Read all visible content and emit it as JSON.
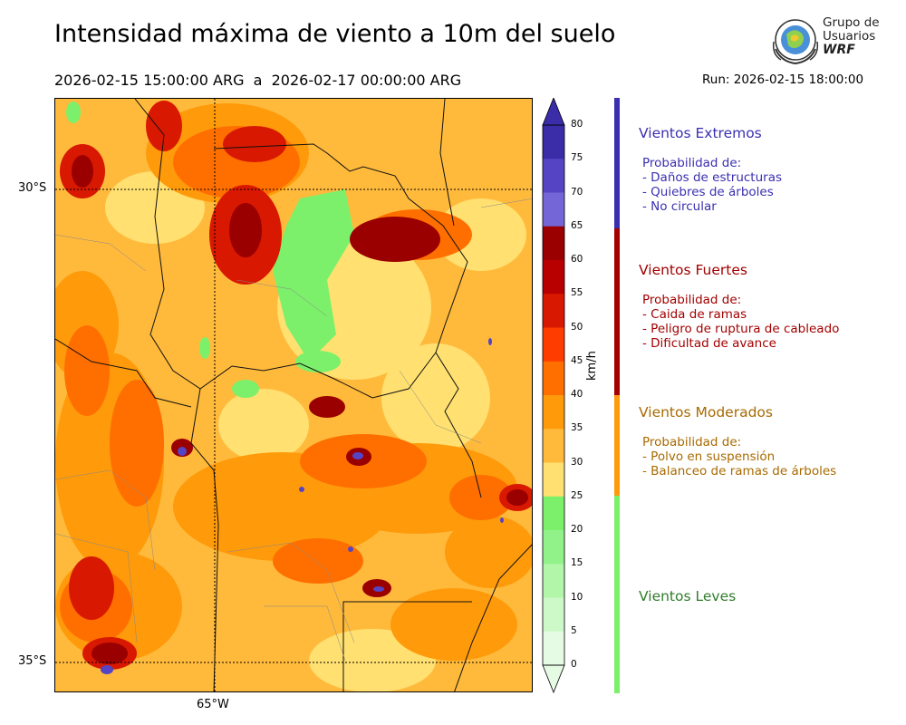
{
  "title": "Intensidad máxima de viento a 10m del suelo",
  "period": "2026-02-15 15:00:00 ARG  a  2026-02-17 00:00:00 ARG",
  "run": "Run: 2026-02-15 18:00:00",
  "logo": {
    "line1": "Grupo de",
    "line2": "Usuarios",
    "line3": "WRF"
  },
  "map": {
    "lat_labels": [
      "30°S",
      "35°S"
    ],
    "lon_labels": [
      "65°W"
    ]
  },
  "colorbar": {
    "unit": "km/h",
    "ticks": [
      "80",
      "75",
      "70",
      "65",
      "60",
      "55",
      "50",
      "45",
      "40",
      "35",
      "30",
      "25",
      "20",
      "15",
      "10",
      "5",
      "0"
    ],
    "colors": {
      "75": "#3b2ca8",
      "70": "#5545c4",
      "65": "#7566d8",
      "60": "#9a0000",
      "55": "#b90000",
      "50": "#d81800",
      "45": "#ff3c00",
      "40": "#ff6f00",
      "35": "#ff9a0a",
      "30": "#ffba3c",
      "25": "#ffe070",
      "20": "#7cf06a",
      "15": "#92f28a",
      "10": "#b2f6aa",
      "5": "#cdf8c8",
      "0": "#e6fbe3"
    }
  },
  "categories": [
    {
      "title": "Vientos Extremos",
      "color": "#3a2fb0",
      "bar_color": "#3a2fb0",
      "lines": [
        "Probabilidad de:",
        "- Daños de estructuras",
        "- Quiebres de árboles",
        "- No circular"
      ]
    },
    {
      "title": "Vientos Fuertes",
      "color": "#a30000",
      "bar_color": "#a30000",
      "lines": [
        "Probabilidad de:",
        "- Caida de ramas",
        "- Peligro de ruptura de cableado",
        "- Dificultad de avance"
      ]
    },
    {
      "title": "Vientos Moderados",
      "color": "#a86a00",
      "bar_color": "#ff9a0a",
      "lines": [
        "Probabilidad de:",
        "- Polvo en suspensión",
        "- Balanceo de ramas de árboles"
      ]
    },
    {
      "title": "Vientos Leves",
      "color": "#2f7d2a",
      "bar_color": "#7cf06a",
      "lines": []
    }
  ]
}
